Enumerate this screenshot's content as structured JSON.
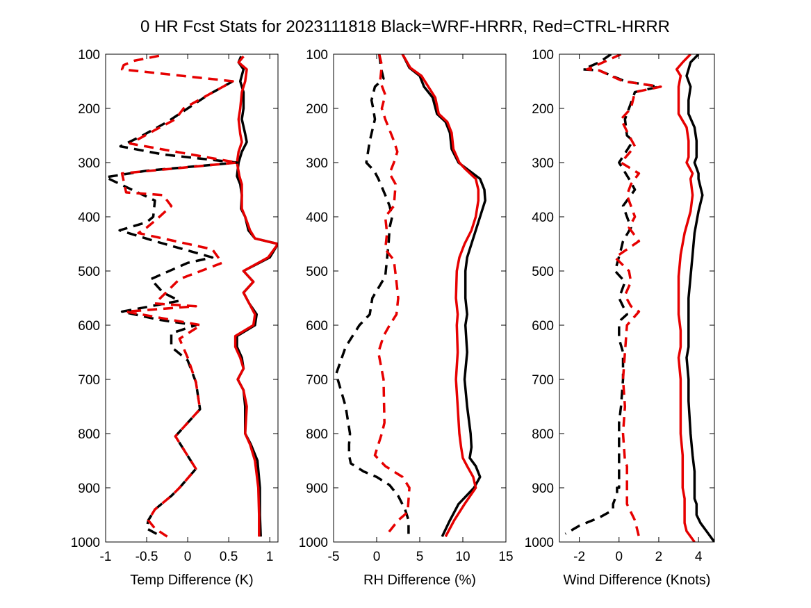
{
  "title": "0 HR Fcst Stats for 2023111818 Black=WRF-HRRR, Red=CTRL-HRRR",
  "colors": {
    "wrf": "#000000",
    "ctrl": "#e60000"
  },
  "chart_data": [
    {
      "type": "line",
      "xlabel": "Temp Difference (K)",
      "ylabel": "",
      "xlim": [
        -1,
        1.1
      ],
      "ylim": [
        100,
        1000
      ],
      "y_reversed": true,
      "xticks": [
        -1,
        -0.5,
        0,
        0.5,
        1
      ],
      "xtick_labels": [
        "-1",
        "-0.5",
        "0",
        "0.5",
        "1"
      ],
      "yticks": [
        100,
        200,
        300,
        400,
        500,
        600,
        700,
        800,
        900,
        1000
      ],
      "ytick_labels": [
        "100",
        "200",
        "300",
        "400",
        "500",
        "600",
        "700",
        "800",
        "900",
        "1000"
      ],
      "series": [
        {
          "key": "wrf_solid",
          "color": "#000000",
          "dash": "solid",
          "x": [
            0.65,
            0.62,
            0.68,
            0.64,
            0.68,
            0.68,
            0.66,
            0.7,
            0.72,
            0.66,
            0.62,
            0.6,
            0.64,
            0.66,
            0.65,
            0.7,
            0.74,
            0.82,
            1.1,
            1.0,
            0.68,
            0.8,
            0.68,
            0.75,
            0.84,
            0.82,
            0.6,
            0.6,
            0.66,
            0.68,
            0.61,
            0.68,
            0.7,
            0.7,
            0.77,
            0.85,
            0.88,
            0.88,
            0.89
          ],
          "y": [
            104,
            115,
            128,
            150,
            170,
            200,
            220,
            247,
            262,
            280,
            300,
            325,
            340,
            360,
            385,
            400,
            425,
            440,
            450,
            475,
            500,
            520,
            540,
            560,
            580,
            600,
            620,
            640,
            660,
            680,
            700,
            720,
            750,
            800,
            820,
            850,
            900,
            950,
            990
          ]
        },
        {
          "key": "ctrl_solid",
          "color": "#e60000",
          "dash": "solid",
          "x": [
            0.68,
            0.62,
            0.72,
            0.7,
            0.66,
            0.64,
            0.62,
            0.64,
            0.66,
            0.62,
            0.6,
            0.63,
            0.66,
            0.66,
            0.66,
            0.7,
            0.76,
            0.82,
            1.1,
            0.98,
            0.68,
            0.8,
            0.68,
            0.75,
            0.82,
            0.8,
            0.58,
            0.58,
            0.64,
            0.68,
            0.61,
            0.68,
            0.72,
            0.7,
            0.76,
            0.82,
            0.86,
            0.87,
            0.87
          ],
          "y": [
            104,
            115,
            128,
            150,
            170,
            200,
            220,
            247,
            262,
            280,
            300,
            325,
            340,
            360,
            385,
            400,
            425,
            440,
            450,
            475,
            500,
            520,
            540,
            560,
            580,
            600,
            620,
            640,
            660,
            680,
            700,
            720,
            750,
            800,
            820,
            850,
            900,
            950,
            990
          ]
        },
        {
          "key": "wrf_dash",
          "color": "#000000",
          "dash": "dashed",
          "x": [
            0.55,
            0.25,
            0.0,
            -0.25,
            -0.55,
            -0.82,
            -0.3,
            0.6,
            -0.5,
            -1.0,
            -0.75,
            -0.4,
            -0.42,
            -0.5,
            -0.83,
            -0.4,
            0.3,
            0.0,
            -0.45,
            -0.3,
            -0.1,
            -0.8,
            -0.35,
            0.1,
            -0.2,
            -0.2,
            0.0,
            0.1,
            0.15,
            -0.15,
            0.1,
            -0.1,
            -0.2,
            -0.4,
            -0.48,
            -0.5,
            -0.32
          ],
          "y": [
            150,
            175,
            200,
            225,
            250,
            270,
            285,
            300,
            315,
            327,
            345,
            370,
            400,
            410,
            425,
            445,
            475,
            485,
            515,
            540,
            555,
            575,
            590,
            600,
            615,
            640,
            665,
            705,
            755,
            805,
            865,
            900,
            915,
            940,
            960,
            975,
            990
          ]
        },
        {
          "key": "ctrl_dash",
          "color": "#e60000",
          "dash": "dashed",
          "x": [
            -0.35,
            -0.65,
            -0.78,
            -0.8,
            0.55,
            -0.05,
            -0.15,
            -0.4,
            -0.7,
            0.6,
            -0.8,
            -0.75,
            -0.3,
            -0.2,
            -0.38,
            -0.5,
            -0.6,
            0.3,
            0.42,
            -0.1,
            -0.3,
            -0.4,
            0.1,
            -0.75,
            0.16,
            -0.1,
            0.0,
            0.1,
            0.15,
            -0.15,
            0.1,
            -0.1,
            -0.2,
            -0.4,
            -0.48,
            -0.4,
            -0.25
          ],
          "y": [
            103,
            112,
            120,
            128,
            150,
            200,
            220,
            240,
            265,
            300,
            320,
            355,
            360,
            380,
            405,
            420,
            430,
            460,
            485,
            515,
            545,
            560,
            565,
            575,
            600,
            625,
            660,
            705,
            755,
            805,
            865,
            900,
            915,
            940,
            960,
            975,
            990
          ]
        }
      ]
    },
    {
      "type": "line",
      "xlabel": "RH Difference (%)",
      "ylabel": "",
      "xlim": [
        -5,
        15
      ],
      "ylim": [
        100,
        1000
      ],
      "y_reversed": true,
      "xticks": [
        -5,
        0,
        5,
        10,
        15
      ],
      "xtick_labels": [
        "-5",
        "0",
        "5",
        "10",
        "15"
      ],
      "yticks": [
        100,
        200,
        300,
        400,
        500,
        600,
        700,
        800,
        900,
        1000
      ],
      "ytick_labels": [
        "100",
        "200",
        "300",
        "400",
        "500",
        "600",
        "700",
        "800",
        "900",
        "1000"
      ],
      "series": [
        {
          "key": "wrf_solid",
          "color": "#000000",
          "dash": "solid",
          "x": [
            3.0,
            3.8,
            5.0,
            5.5,
            6.5,
            7.0,
            8.0,
            8.5,
            8.7,
            9.5,
            10.5,
            12.0,
            12.5,
            12.6,
            12.0,
            11.5,
            11.0,
            10.5,
            10.3,
            10.3,
            10.5,
            10.3,
            10.5,
            10.2,
            10.5,
            10.9,
            11.0,
            10.8,
            11.5,
            12.0,
            11.3,
            9.5,
            8.5,
            7.6
          ],
          "y": [
            100,
            125,
            140,
            160,
            180,
            210,
            225,
            245,
            275,
            300,
            312,
            330,
            350,
            370,
            400,
            425,
            450,
            475,
            500,
            550,
            580,
            600,
            650,
            700,
            750,
            800,
            825,
            845,
            860,
            880,
            900,
            930,
            960,
            990
          ]
        },
        {
          "key": "ctrl_solid",
          "color": "#e60000",
          "dash": "solid",
          "x": [
            3.0,
            3.9,
            5.2,
            6.0,
            6.8,
            7.2,
            8.2,
            8.7,
            8.9,
            9.6,
            10.3,
            11.5,
            11.8,
            11.8,
            11.5,
            11.0,
            10.2,
            9.6,
            9.3,
            9.2,
            9.4,
            9.3,
            9.4,
            9.2,
            9.4,
            9.6,
            9.8,
            10.0,
            10.5,
            11.2,
            11.5,
            10.2,
            9.0,
            8.0
          ],
          "y": [
            100,
            125,
            140,
            160,
            180,
            210,
            225,
            245,
            275,
            300,
            312,
            330,
            350,
            370,
            400,
            425,
            450,
            475,
            500,
            550,
            580,
            600,
            650,
            700,
            750,
            800,
            825,
            845,
            860,
            880,
            900,
            930,
            960,
            990
          ]
        },
        {
          "key": "wrf_dash",
          "color": "#000000",
          "dash": "dashed",
          "x": [
            0.3,
            0.5,
            0.8,
            -0.2,
            -0.6,
            -0.4,
            -0.2,
            -0.8,
            -1.2,
            -0.3,
            0.2,
            1.0,
            1.5,
            1.8,
            1.5,
            1.4,
            1.0,
            -0.5,
            -0.8,
            -2.0,
            -3.6,
            -4.7,
            -3.6,
            -3.1,
            -3.2,
            -3.2,
            -3.0,
            -1.5,
            0.0,
            1.5,
            2.5,
            3.3,
            3.7,
            3.7
          ],
          "y": [
            100,
            125,
            145,
            160,
            185,
            200,
            220,
            260,
            300,
            315,
            330,
            360,
            380,
            400,
            420,
            445,
            510,
            550,
            580,
            600,
            640,
            690,
            750,
            800,
            820,
            840,
            855,
            870,
            880,
            895,
            915,
            940,
            960,
            985
          ]
        },
        {
          "key": "ctrl_dash",
          "color": "#e60000",
          "dash": "dashed",
          "x": [
            0.3,
            0.6,
            0.4,
            1.0,
            0.6,
            1.0,
            1.5,
            2.0,
            2.4,
            2.0,
            1.5,
            2.2,
            2.0,
            1.0,
            1.2,
            1.0,
            2.0,
            2.3,
            2.5,
            2.3,
            1.5,
            0.8,
            0.2,
            0.8,
            0.9,
            0.6,
            -0.2,
            1.0,
            3.0,
            3.8,
            3.6,
            2.5,
            1.0
          ],
          "y": [
            100,
            120,
            150,
            175,
            200,
            220,
            240,
            260,
            280,
            300,
            320,
            340,
            380,
            400,
            430,
            460,
            480,
            520,
            550,
            580,
            600,
            620,
            650,
            700,
            780,
            800,
            840,
            860,
            880,
            900,
            945,
            960,
            990
          ]
        }
      ]
    },
    {
      "type": "line",
      "xlabel": "Wind Difference (Knots)",
      "ylabel": "",
      "xlim": [
        -3,
        4.8
      ],
      "ylim": [
        100,
        1000
      ],
      "y_reversed": true,
      "xticks": [
        -2,
        0,
        2,
        4
      ],
      "xtick_labels": [
        "-2",
        "0",
        "2",
        "4"
      ],
      "yticks": [
        100,
        200,
        300,
        400,
        500,
        600,
        700,
        800,
        900,
        1000
      ],
      "ytick_labels": [
        "100",
        "200",
        "300",
        "400",
        "500",
        "600",
        "700",
        "800",
        "900",
        "1000"
      ],
      "series": [
        {
          "key": "wrf_solid",
          "color": "#000000",
          "dash": "solid",
          "x": [
            4.0,
            3.6,
            3.5,
            3.4,
            3.6,
            3.5,
            3.5,
            3.8,
            3.9,
            3.9,
            3.8,
            4.0,
            4.0,
            4.2,
            4.0,
            3.8,
            3.7,
            3.6,
            3.5,
            3.5,
            3.5,
            3.5,
            3.4,
            3.5,
            3.5,
            3.6,
            3.7,
            3.8,
            3.8,
            3.8,
            3.9,
            3.9,
            4.1,
            4.4,
            4.8
          ],
          "y": [
            100,
            115,
            128,
            140,
            160,
            185,
            210,
            235,
            260,
            290,
            300,
            320,
            330,
            360,
            390,
            430,
            470,
            510,
            550,
            580,
            610,
            640,
            660,
            700,
            740,
            800,
            840,
            870,
            900,
            920,
            930,
            950,
            965,
            980,
            1000
          ]
        },
        {
          "key": "ctrl_solid",
          "color": "#e60000",
          "dash": "solid",
          "x": [
            3.6,
            3.2,
            2.9,
            3.1,
            3.0,
            3.0,
            3.0,
            3.4,
            3.5,
            3.5,
            3.4,
            3.7,
            3.6,
            3.7,
            3.6,
            3.3,
            3.1,
            3.0,
            3.0,
            3.0,
            3.1,
            3.1,
            3.0,
            3.1,
            3.1,
            3.1,
            3.2,
            3.2,
            3.2,
            3.3,
            3.3,
            3.3,
            3.3,
            3.4,
            3.8
          ],
          "y": [
            100,
            115,
            128,
            140,
            160,
            185,
            210,
            235,
            260,
            290,
            300,
            320,
            330,
            360,
            390,
            430,
            470,
            510,
            550,
            580,
            610,
            640,
            660,
            700,
            740,
            800,
            840,
            870,
            900,
            920,
            930,
            950,
            965,
            980,
            1000
          ]
        },
        {
          "key": "wrf_dash",
          "color": "#000000",
          "dash": "dashed",
          "x": [
            -0.4,
            -1.0,
            -1.8,
            -1.0,
            0.3,
            2.0,
            0.8,
            0.5,
            0.3,
            0.4,
            0.7,
            0.0,
            0.5,
            0.8,
            0.2,
            0.6,
            0.2,
            0.1,
            -0.2,
            0.3,
            0.0,
            0.4,
            0.1,
            0.0,
            0.0,
            0.2,
            0.2,
            0.1,
            0.0,
            0.0,
            0.0,
            -0.1,
            -0.1,
            -0.2,
            -0.3,
            -0.3,
            -0.5,
            -1.0,
            -2.0,
            -2.7
          ],
          "y": [
            100,
            115,
            128,
            130,
            150,
            160,
            170,
            200,
            220,
            250,
            260,
            300,
            330,
            350,
            380,
            420,
            445,
            460,
            500,
            520,
            550,
            580,
            590,
            600,
            625,
            650,
            700,
            750,
            780,
            800,
            900,
            900,
            910,
            920,
            930,
            940,
            945,
            955,
            970,
            985
          ]
        },
        {
          "key": "ctrl_dash",
          "color": "#e60000",
          "dash": "dashed",
          "x": [
            0.1,
            -0.8,
            -1.6,
            -1.0,
            0.2,
            2.1,
            0.8,
            0.6,
            0.1,
            0.5,
            0.8,
            0.1,
            1.0,
            0.6,
            0.4,
            0.8,
            0.5,
            1.0,
            -0.2,
            0.5,
            0.6,
            0.3,
            0.6,
            1.0,
            0.4,
            0.3,
            0.2,
            0.3,
            0.2,
            0.3,
            0.4,
            0.4,
            0.4,
            0.8,
            1.0
          ],
          "y": [
            100,
            115,
            128,
            130,
            150,
            160,
            170,
            200,
            220,
            250,
            270,
            300,
            320,
            340,
            360,
            400,
            420,
            445,
            475,
            500,
            520,
            545,
            565,
            575,
            600,
            650,
            700,
            750,
            800,
            850,
            860,
            900,
            930,
            960,
            990
          ]
        }
      ]
    }
  ]
}
